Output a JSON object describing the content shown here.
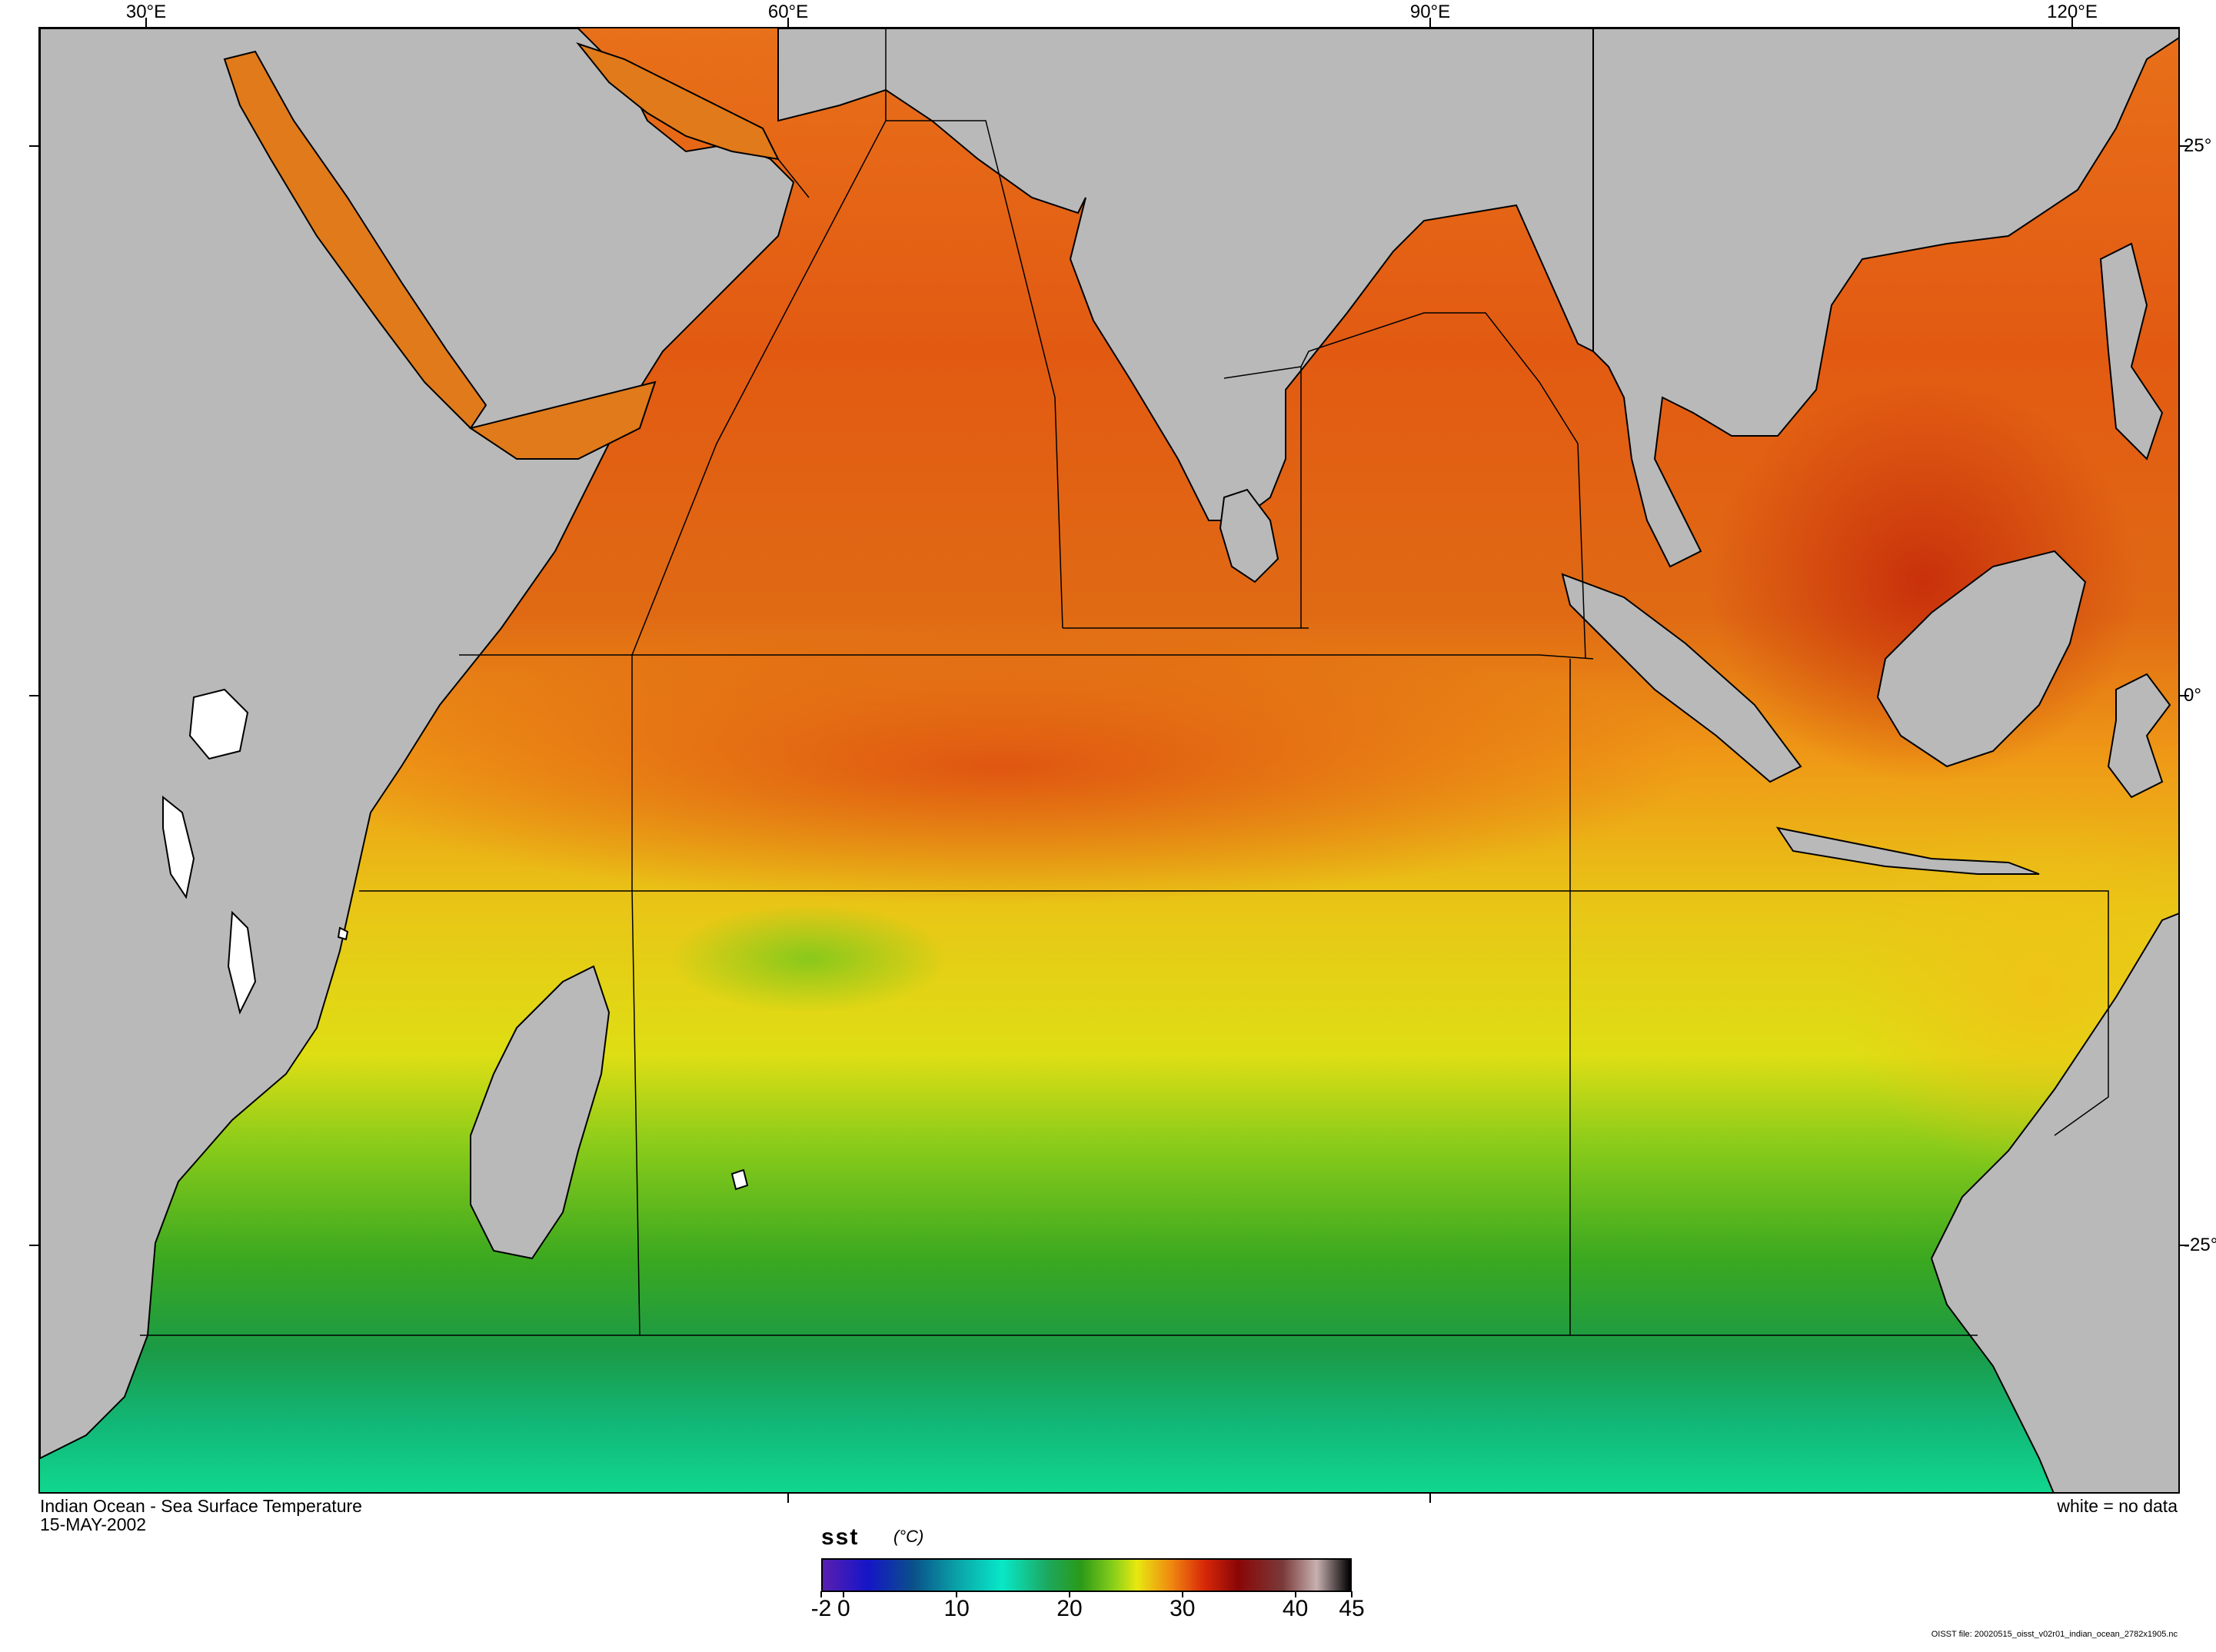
{
  "map": {
    "title": "Indian Ocean - Sea Surface Temperature",
    "date": "15-MAY-2002",
    "no_data_note": "white = no data",
    "land_color": "#b9b9b9",
    "longitude_labels": [
      "30°E",
      "60°E",
      "90°E",
      "120°E"
    ],
    "latitude_labels": [
      "25°",
      "0°",
      "-25°"
    ],
    "footer_note": "OISST file: 20020515_oisst_v02r01_indian_ocean_2782x1905.nc"
  },
  "colorbar": {
    "variable": "sst",
    "units": "(°C)",
    "range": [
      -2,
      45
    ],
    "tick_labels": [
      "-2",
      "0",
      "10",
      "20",
      "30",
      "40",
      "45"
    ],
    "tick_values": [
      -2,
      0,
      10,
      20,
      30,
      40,
      45
    ],
    "stops": [
      {
        "value": -2,
        "color": "#5a1fb0"
      },
      {
        "value": 2,
        "color": "#1515c8"
      },
      {
        "value": 6,
        "color": "#0a4f8a"
      },
      {
        "value": 10,
        "color": "#0aa3a8"
      },
      {
        "value": 14,
        "color": "#08e8c8"
      },
      {
        "value": 18,
        "color": "#1ca860"
      },
      {
        "value": 21,
        "color": "#2a9a18"
      },
      {
        "value": 24,
        "color": "#8cd01a"
      },
      {
        "value": 26,
        "color": "#e8e810"
      },
      {
        "value": 29,
        "color": "#f08a10"
      },
      {
        "value": 32,
        "color": "#d82808"
      },
      {
        "value": 35,
        "color": "#8a0606"
      },
      {
        "value": 39,
        "color": "#7a3a3a"
      },
      {
        "value": 42,
        "color": "#c8b0b0"
      },
      {
        "value": 45,
        "color": "#000000"
      }
    ]
  }
}
